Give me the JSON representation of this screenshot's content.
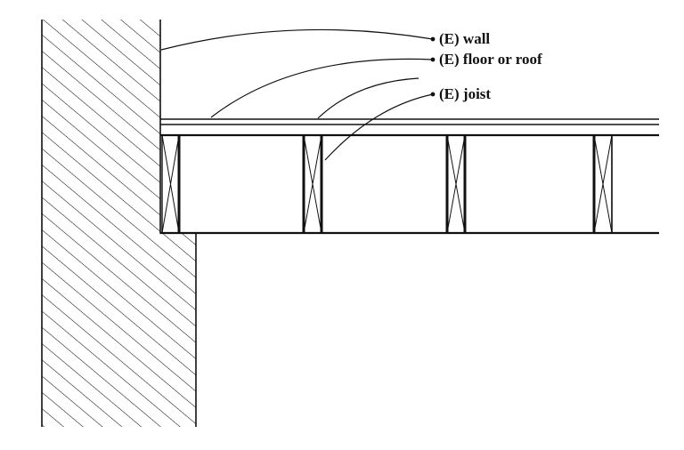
{
  "diagram": {
    "labels": {
      "wall": "(E)  wall",
      "floor": "(E) floor or roof",
      "joist": "(E) joist"
    },
    "colors": {
      "ink": "#111111",
      "background": "#ffffff"
    }
  }
}
